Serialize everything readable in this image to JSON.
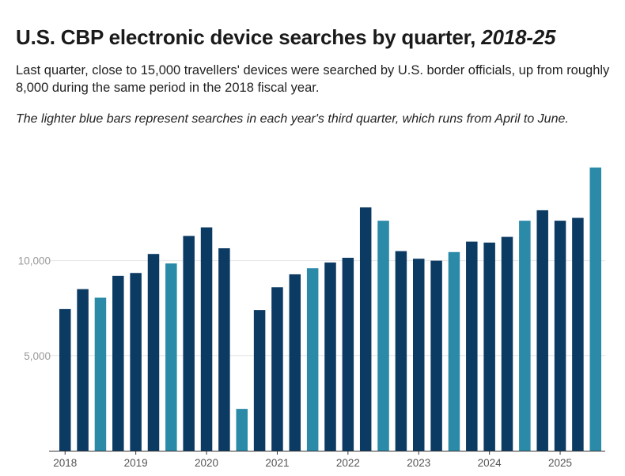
{
  "title_main": "U.S. CBP electronic device searches by quarter, ",
  "title_italic": "2018-25",
  "subtitle": "Last quarter, close to 15,000 travellers' devices were searched by U.S. border officials, up from roughly 8,000 during the same period in the 2018 fiscal year.",
  "note": "The lighter blue bars represent searches in each year's third quarter, which runs from April to June.",
  "colors": {
    "regular": "#0b3a63",
    "q3": "#2a8aa8",
    "grid": "#e6e6e6",
    "axis": "#333333"
  },
  "chart_data": {
    "type": "bar",
    "title": "U.S. CBP electronic device searches by quarter, 2018-25",
    "xlabel": "",
    "ylabel": "",
    "ylim": [
      0,
      15600
    ],
    "yticks": [
      5000,
      10000
    ],
    "ytick_labels": [
      "5,000",
      "10,000"
    ],
    "grid": true,
    "year_labels": [
      "2018",
      "2019",
      "2020",
      "2021",
      "2022",
      "2023",
      "2024",
      "2025"
    ],
    "year_start_index": [
      0,
      4,
      8,
      12,
      16,
      20,
      24,
      28
    ],
    "values": [
      7450,
      8500,
      8050,
      9200,
      9350,
      10350,
      9850,
      11300,
      11750,
      10650,
      2200,
      7400,
      8600,
      9280,
      9600,
      9900,
      10150,
      12800,
      12100,
      10500,
      10100,
      10000,
      10450,
      11000,
      10950,
      11250,
      12100,
      12650,
      12100,
      12250,
      14900
    ],
    "highlight_q3": [
      false,
      false,
      true,
      false,
      false,
      false,
      true,
      false,
      false,
      false,
      true,
      false,
      false,
      false,
      true,
      false,
      false,
      false,
      true,
      false,
      false,
      false,
      true,
      false,
      false,
      false,
      true,
      false,
      false,
      false,
      true
    ]
  }
}
